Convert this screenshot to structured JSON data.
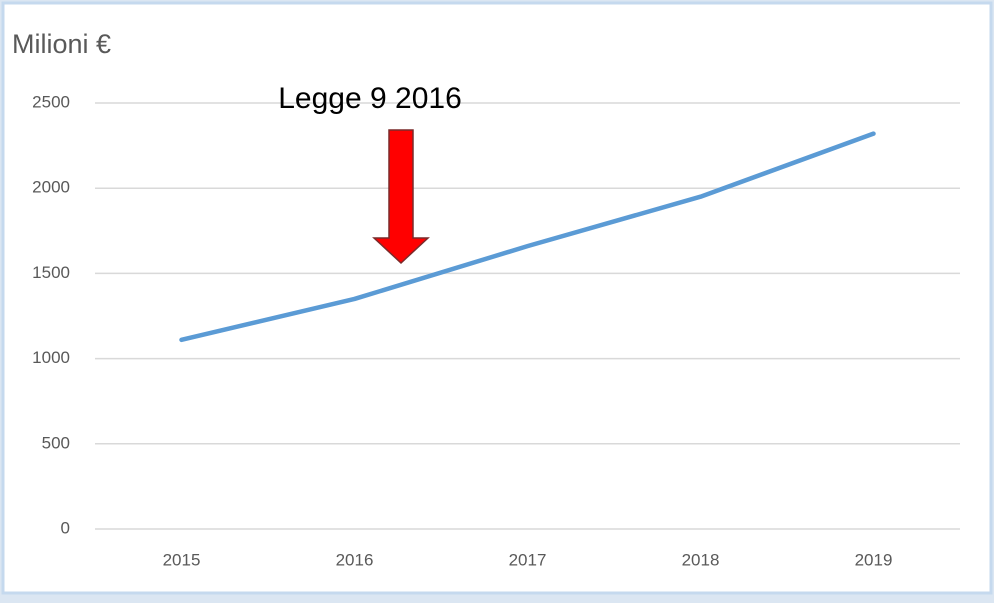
{
  "chart_data": {
    "type": "line",
    "title": "Milioni €",
    "annotation": "Legge 9 2016",
    "categories": [
      "2015",
      "2016",
      "2017",
      "2018",
      "2019"
    ],
    "series": [
      {
        "color": "#5b9bd5",
        "values": [
          1110,
          1350,
          1660,
          1950,
          2320
        ]
      }
    ],
    "ylim": [
      0,
      2500
    ],
    "yticks": [
      0,
      500,
      1000,
      1500,
      2000,
      2500
    ],
    "grid": true
  }
}
